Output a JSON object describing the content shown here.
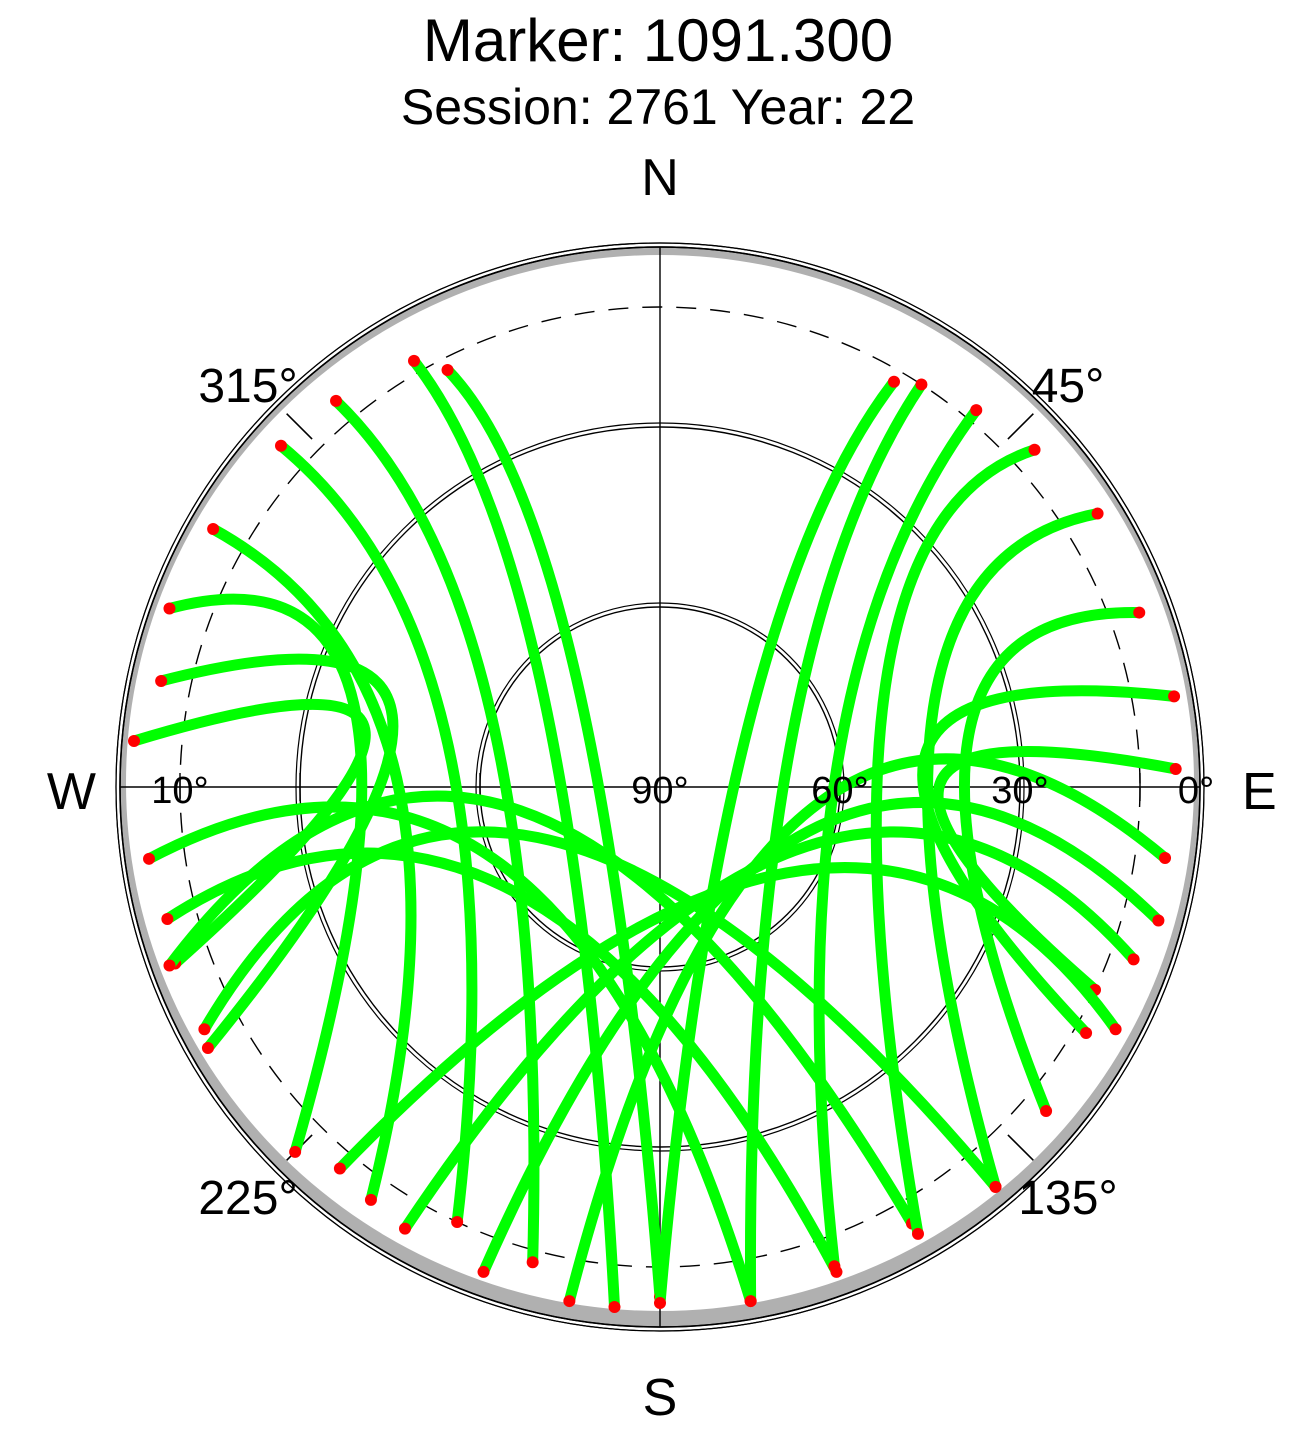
{
  "chart_data": {
    "type": "scatter",
    "projection": "polar-skyplot",
    "title": "Marker: 1091.300",
    "subtitle": "Session: 2761 Year: 22",
    "directions": {
      "north": "N",
      "east": "E",
      "south": "S",
      "west": "W"
    },
    "azimuth_labels": [
      {
        "azimuth": 45,
        "text": "45°"
      },
      {
        "azimuth": 135,
        "text": "135°"
      },
      {
        "azimuth": 225,
        "text": "225°"
      },
      {
        "azimuth": 315,
        "text": "315°"
      }
    ],
    "elevation_labels": [
      {
        "elevation": 90,
        "text": "90°"
      },
      {
        "elevation": 60,
        "text": "60°"
      },
      {
        "elevation": 30,
        "text": "30°"
      },
      {
        "elevation": 0,
        "text": "0°"
      },
      {
        "elevation": 10,
        "text": "10°"
      }
    ],
    "elevation_circles": [
      0,
      30,
      60
    ],
    "dashed_elevation_circle": 10,
    "observation_colors": {
      "normal": "#00ff00",
      "low_elevation": "#ff0000"
    },
    "horizon_mask_color": "#b0b0b0",
    "tracks_approximate": [
      {
        "az_start": 333,
        "el_start": 12,
        "az_end": 180,
        "el_end": 5
      },
      {
        "az_start": 330,
        "el_start": 8,
        "az_end": 185,
        "el_end": 3
      },
      {
        "az_start": 320,
        "el_start": 6,
        "az_end": 195,
        "el_end": 8
      },
      {
        "az_start": 312,
        "el_start": 5,
        "az_end": 205,
        "el_end": 10
      },
      {
        "az_start": 300,
        "el_start": 4,
        "az_end": 215,
        "el_end": 6
      },
      {
        "az_start": 290,
        "el_start": 3,
        "az_end": 225,
        "el_end": 4
      },
      {
        "az_start": 282,
        "el_start": 5,
        "az_end": 240,
        "el_end": 3
      },
      {
        "az_start": 275,
        "el_start": 2,
        "az_end": 250,
        "el_end": 4
      },
      {
        "az_start": 262,
        "el_start": 4,
        "az_end": 170,
        "el_end": 3
      },
      {
        "az_start": 255,
        "el_start": 5,
        "az_end": 160,
        "el_end": 4
      },
      {
        "az_start": 250,
        "el_start": 3,
        "az_end": 150,
        "el_end": 6
      },
      {
        "az_start": 242,
        "el_start": 4,
        "az_end": 140,
        "el_end": 3
      },
      {
        "az_start": 30,
        "el_start": 12,
        "az_end": 180,
        "el_end": 4
      },
      {
        "az_start": 33,
        "el_start": 10,
        "az_end": 170,
        "el_end": 3
      },
      {
        "az_start": 40,
        "el_start": 8,
        "az_end": 160,
        "el_end": 5
      },
      {
        "az_start": 48,
        "el_start": 6,
        "az_end": 150,
        "el_end": 4
      },
      {
        "az_start": 58,
        "el_start": 4,
        "az_end": 140,
        "el_end": 3
      },
      {
        "az_start": 70,
        "el_start": 5,
        "az_end": 130,
        "el_end": 6
      },
      {
        "az_start": 80,
        "el_start": 3,
        "az_end": 120,
        "el_end": 8
      },
      {
        "az_start": 88,
        "el_start": 4,
        "az_end": 115,
        "el_end": 10
      },
      {
        "az_start": 98,
        "el_start": 5,
        "az_end": 190,
        "el_end": 3
      },
      {
        "az_start": 105,
        "el_start": 4,
        "az_end": 200,
        "el_end": 4
      },
      {
        "az_start": 110,
        "el_start": 6,
        "az_end": 210,
        "el_end": 5
      },
      {
        "az_start": 118,
        "el_start": 4,
        "az_end": 220,
        "el_end": 7
      }
    ],
    "grid": true,
    "legend": "none"
  }
}
